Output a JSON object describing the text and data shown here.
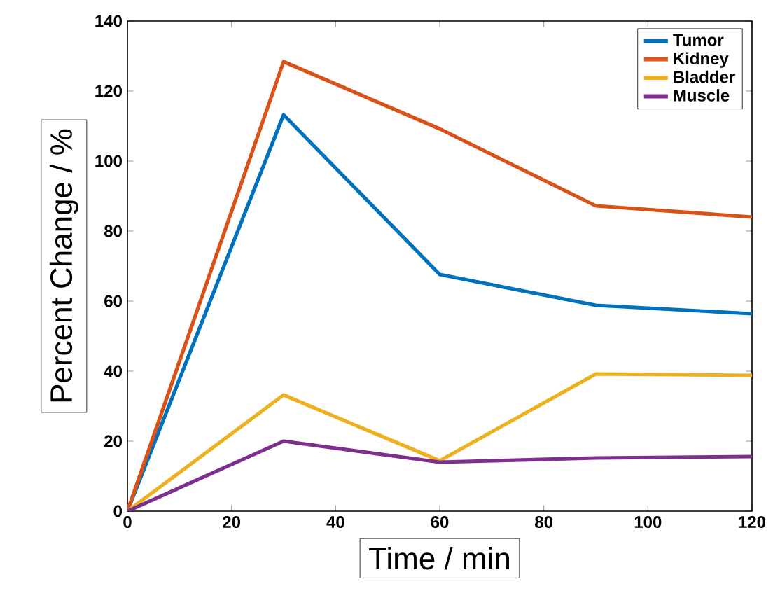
{
  "chart_data": {
    "type": "line",
    "xlabel": "Time / min",
    "ylabel": "Percent Change / %",
    "x": [
      0,
      30,
      60,
      90,
      120
    ],
    "series": [
      {
        "name": "Tumor",
        "color": "#0072bd",
        "values": [
          0,
          113.2,
          67.6,
          58.8,
          56.4
        ]
      },
      {
        "name": "Kidney",
        "color": "#d95319",
        "values": [
          0,
          128.4,
          109.2,
          87.2,
          84
        ]
      },
      {
        "name": "Bladder",
        "color": "#edb120",
        "values": [
          0,
          33.2,
          14.4,
          39.2,
          38.8
        ]
      },
      {
        "name": "Muscle",
        "color": "#7e2f8e",
        "values": [
          0,
          20,
          14,
          15.2,
          15.6
        ]
      }
    ],
    "xlim": [
      0,
      120
    ],
    "ylim": [
      0,
      140
    ],
    "xticks": [
      0,
      20,
      40,
      60,
      80,
      100,
      120
    ],
    "yticks": [
      0,
      20,
      40,
      60,
      80,
      100,
      120,
      140
    ],
    "legend": "top right",
    "grid": false,
    "marker": "none",
    "line_style": "solid"
  }
}
